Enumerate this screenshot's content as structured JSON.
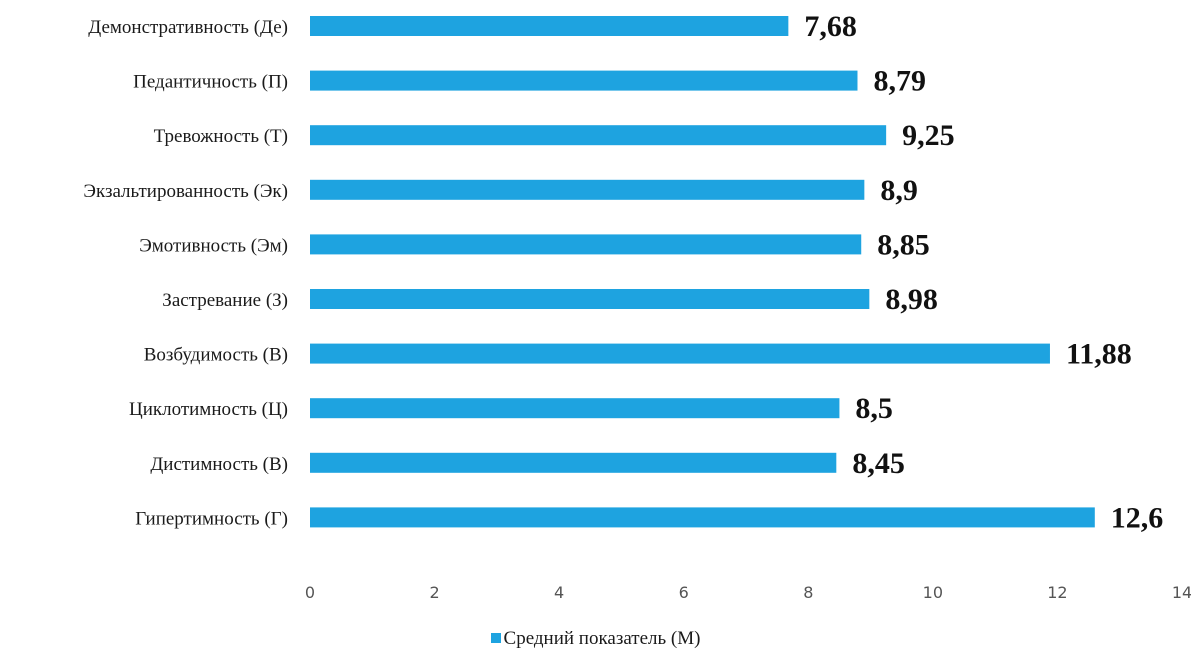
{
  "colors": {
    "bar": "#1ea3e0",
    "value_text": "#111111",
    "label_text": "#1a1a1a",
    "tick_text": "#555555"
  },
  "chart_data": {
    "type": "bar",
    "orientation": "horizontal",
    "categories": [
      "Демонстративность (Де)",
      "Педантичность (П)",
      "Тревожность (Т)",
      "Экзальтированность (Эк)",
      "Эмотивность (Эм)",
      "Застревание (З)",
      "Возбудимость (В)",
      "Циклотимность (Ц)",
      "Дистимность (В)",
      "Гипертимность (Г)"
    ],
    "values": [
      7.68,
      8.79,
      9.25,
      8.9,
      8.85,
      8.98,
      11.88,
      8.5,
      8.45,
      12.6
    ],
    "value_labels": [
      "7,68",
      "8,79",
      "9,25",
      "8,9",
      "8,85",
      "8,98",
      "11,88",
      "8,5",
      "8,45",
      "12,6"
    ],
    "xlim": [
      0,
      14
    ],
    "xticks": [
      "0",
      "2",
      "4",
      "6",
      "8",
      "10",
      "12",
      "14"
    ],
    "grid": false,
    "legend_position": "bottom",
    "series": [
      {
        "name": "Средний показатель (М)",
        "values": [
          7.68,
          8.79,
          9.25,
          8.9,
          8.85,
          8.98,
          11.88,
          8.5,
          8.45,
          12.6
        ]
      }
    ]
  }
}
